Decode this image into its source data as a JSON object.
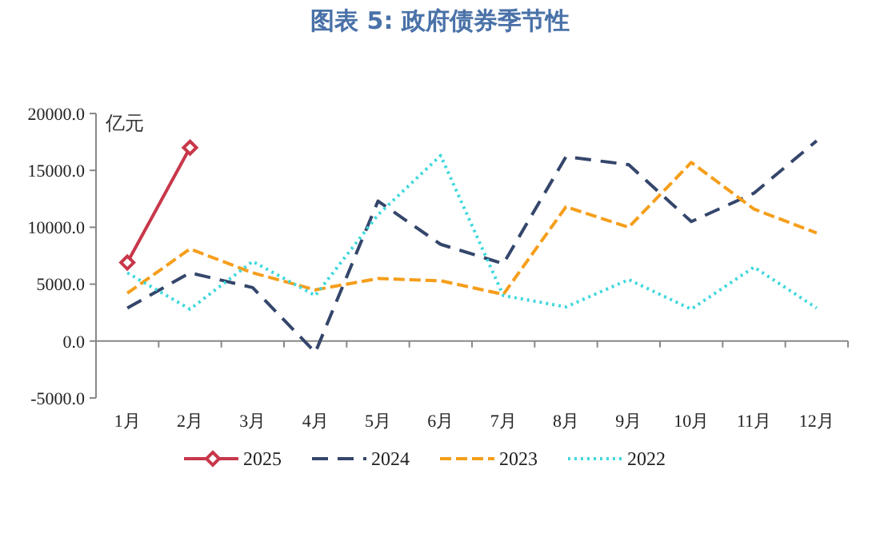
{
  "chart_data": {
    "type": "line",
    "title": "图表 5:   政府债券季节性",
    "ylabel": "亿元",
    "categories": [
      "1月",
      "2月",
      "3月",
      "4月",
      "5月",
      "6月",
      "7月",
      "8月",
      "9月",
      "10月",
      "11月",
      "12月"
    ],
    "ylim": [
      -5000,
      20000
    ],
    "yticks": [
      {
        "value": -5000,
        "label": "-5000.0"
      },
      {
        "value": 0,
        "label": "0.0"
      },
      {
        "value": 5000,
        "label": "5000.0"
      },
      {
        "value": 10000,
        "label": "10000.0"
      },
      {
        "value": 15000,
        "label": "15000.0"
      },
      {
        "value": 20000,
        "label": "20000.0"
      }
    ],
    "legend": "bottom",
    "series": [
      {
        "name": "2025",
        "color": "#c8374a",
        "line_style": "solid",
        "marker": "diamond",
        "values": [
          6900,
          17000,
          null,
          null,
          null,
          null,
          null,
          null,
          null,
          null,
          null,
          null
        ]
      },
      {
        "name": "2024",
        "color": "#34466b",
        "line_style": "dashed",
        "values": [
          2900,
          6000,
          4700,
          -1000,
          12300,
          8500,
          6800,
          16200,
          15500,
          10500,
          13000,
          17600
        ]
      },
      {
        "name": "2023",
        "color": "#f59e1b",
        "line_style": "dashed",
        "values": [
          4200,
          8100,
          6000,
          4500,
          5500,
          5300,
          4100,
          11800,
          10000,
          15700,
          11600,
          9500
        ]
      },
      {
        "name": "2022",
        "color": "#3fd8dc",
        "line_style": "dotted",
        "values": [
          6000,
          2800,
          7000,
          4000,
          11100,
          16300,
          4000,
          3000,
          5400,
          2800,
          6500,
          2900
        ]
      }
    ]
  }
}
